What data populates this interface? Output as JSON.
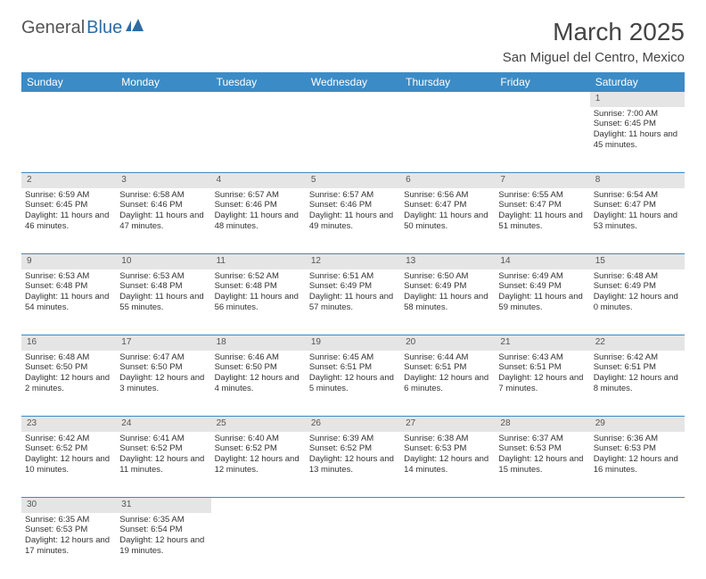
{
  "header": {
    "logo_general": "General",
    "logo_blue": "Blue",
    "month_title": "March 2025",
    "location": "San Miguel del Centro, Mexico"
  },
  "colors": {
    "header_bg": "#3b8bc6",
    "header_fg": "#ffffff",
    "daynum_bg": "#e5e5e5",
    "border": "#3b8bc6",
    "logo_accent": "#2e6ca4"
  },
  "weekdays": [
    "Sunday",
    "Monday",
    "Tuesday",
    "Wednesday",
    "Thursday",
    "Friday",
    "Saturday"
  ],
  "weeks": [
    [
      null,
      null,
      null,
      null,
      null,
      null,
      {
        "n": "1",
        "sr": "Sunrise: 7:00 AM",
        "ss": "Sunset: 6:45 PM",
        "dl": "Daylight: 11 hours and 45 minutes."
      }
    ],
    [
      {
        "n": "2",
        "sr": "Sunrise: 6:59 AM",
        "ss": "Sunset: 6:45 PM",
        "dl": "Daylight: 11 hours and 46 minutes."
      },
      {
        "n": "3",
        "sr": "Sunrise: 6:58 AM",
        "ss": "Sunset: 6:46 PM",
        "dl": "Daylight: 11 hours and 47 minutes."
      },
      {
        "n": "4",
        "sr": "Sunrise: 6:57 AM",
        "ss": "Sunset: 6:46 PM",
        "dl": "Daylight: 11 hours and 48 minutes."
      },
      {
        "n": "5",
        "sr": "Sunrise: 6:57 AM",
        "ss": "Sunset: 6:46 PM",
        "dl": "Daylight: 11 hours and 49 minutes."
      },
      {
        "n": "6",
        "sr": "Sunrise: 6:56 AM",
        "ss": "Sunset: 6:47 PM",
        "dl": "Daylight: 11 hours and 50 minutes."
      },
      {
        "n": "7",
        "sr": "Sunrise: 6:55 AM",
        "ss": "Sunset: 6:47 PM",
        "dl": "Daylight: 11 hours and 51 minutes."
      },
      {
        "n": "8",
        "sr": "Sunrise: 6:54 AM",
        "ss": "Sunset: 6:47 PM",
        "dl": "Daylight: 11 hours and 53 minutes."
      }
    ],
    [
      {
        "n": "9",
        "sr": "Sunrise: 6:53 AM",
        "ss": "Sunset: 6:48 PM",
        "dl": "Daylight: 11 hours and 54 minutes."
      },
      {
        "n": "10",
        "sr": "Sunrise: 6:53 AM",
        "ss": "Sunset: 6:48 PM",
        "dl": "Daylight: 11 hours and 55 minutes."
      },
      {
        "n": "11",
        "sr": "Sunrise: 6:52 AM",
        "ss": "Sunset: 6:48 PM",
        "dl": "Daylight: 11 hours and 56 minutes."
      },
      {
        "n": "12",
        "sr": "Sunrise: 6:51 AM",
        "ss": "Sunset: 6:49 PM",
        "dl": "Daylight: 11 hours and 57 minutes."
      },
      {
        "n": "13",
        "sr": "Sunrise: 6:50 AM",
        "ss": "Sunset: 6:49 PM",
        "dl": "Daylight: 11 hours and 58 minutes."
      },
      {
        "n": "14",
        "sr": "Sunrise: 6:49 AM",
        "ss": "Sunset: 6:49 PM",
        "dl": "Daylight: 11 hours and 59 minutes."
      },
      {
        "n": "15",
        "sr": "Sunrise: 6:48 AM",
        "ss": "Sunset: 6:49 PM",
        "dl": "Daylight: 12 hours and 0 minutes."
      }
    ],
    [
      {
        "n": "16",
        "sr": "Sunrise: 6:48 AM",
        "ss": "Sunset: 6:50 PM",
        "dl": "Daylight: 12 hours and 2 minutes."
      },
      {
        "n": "17",
        "sr": "Sunrise: 6:47 AM",
        "ss": "Sunset: 6:50 PM",
        "dl": "Daylight: 12 hours and 3 minutes."
      },
      {
        "n": "18",
        "sr": "Sunrise: 6:46 AM",
        "ss": "Sunset: 6:50 PM",
        "dl": "Daylight: 12 hours and 4 minutes."
      },
      {
        "n": "19",
        "sr": "Sunrise: 6:45 AM",
        "ss": "Sunset: 6:51 PM",
        "dl": "Daylight: 12 hours and 5 minutes."
      },
      {
        "n": "20",
        "sr": "Sunrise: 6:44 AM",
        "ss": "Sunset: 6:51 PM",
        "dl": "Daylight: 12 hours and 6 minutes."
      },
      {
        "n": "21",
        "sr": "Sunrise: 6:43 AM",
        "ss": "Sunset: 6:51 PM",
        "dl": "Daylight: 12 hours and 7 minutes."
      },
      {
        "n": "22",
        "sr": "Sunrise: 6:42 AM",
        "ss": "Sunset: 6:51 PM",
        "dl": "Daylight: 12 hours and 8 minutes."
      }
    ],
    [
      {
        "n": "23",
        "sr": "Sunrise: 6:42 AM",
        "ss": "Sunset: 6:52 PM",
        "dl": "Daylight: 12 hours and 10 minutes."
      },
      {
        "n": "24",
        "sr": "Sunrise: 6:41 AM",
        "ss": "Sunset: 6:52 PM",
        "dl": "Daylight: 12 hours and 11 minutes."
      },
      {
        "n": "25",
        "sr": "Sunrise: 6:40 AM",
        "ss": "Sunset: 6:52 PM",
        "dl": "Daylight: 12 hours and 12 minutes."
      },
      {
        "n": "26",
        "sr": "Sunrise: 6:39 AM",
        "ss": "Sunset: 6:52 PM",
        "dl": "Daylight: 12 hours and 13 minutes."
      },
      {
        "n": "27",
        "sr": "Sunrise: 6:38 AM",
        "ss": "Sunset: 6:53 PM",
        "dl": "Daylight: 12 hours and 14 minutes."
      },
      {
        "n": "28",
        "sr": "Sunrise: 6:37 AM",
        "ss": "Sunset: 6:53 PM",
        "dl": "Daylight: 12 hours and 15 minutes."
      },
      {
        "n": "29",
        "sr": "Sunrise: 6:36 AM",
        "ss": "Sunset: 6:53 PM",
        "dl": "Daylight: 12 hours and 16 minutes."
      }
    ],
    [
      {
        "n": "30",
        "sr": "Sunrise: 6:35 AM",
        "ss": "Sunset: 6:53 PM",
        "dl": "Daylight: 12 hours and 17 minutes."
      },
      {
        "n": "31",
        "sr": "Sunrise: 6:35 AM",
        "ss": "Sunset: 6:54 PM",
        "dl": "Daylight: 12 hours and 19 minutes."
      },
      null,
      null,
      null,
      null,
      null
    ]
  ]
}
